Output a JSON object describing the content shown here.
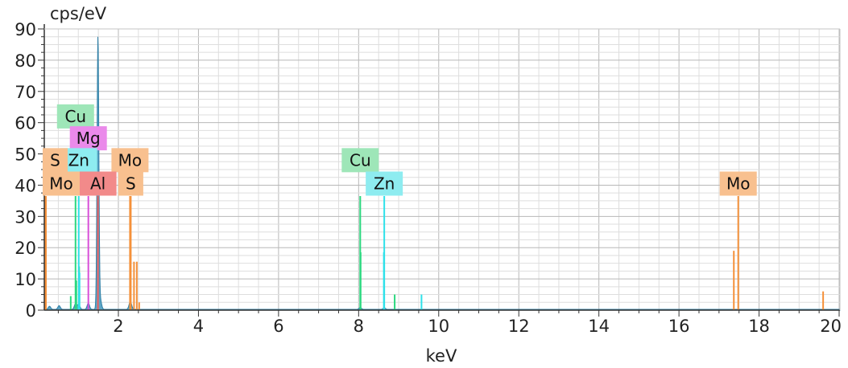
{
  "chart_data": {
    "type": "line",
    "ylabel": "cps/eV",
    "xlabel": "keV",
    "xlim": [
      0.15,
      20.02
    ],
    "ylim": [
      0,
      90
    ],
    "x_ticks": [
      "2",
      "4",
      "6",
      "8",
      "10",
      "12",
      "14",
      "16",
      "18",
      "20"
    ],
    "y_ticks": [
      "0",
      "10",
      "20",
      "30",
      "40",
      "50",
      "60",
      "70",
      "80",
      "90"
    ],
    "grid": true,
    "spectrum": {
      "name": "",
      "color": "#4a9bbf",
      "peaks": [
        {
          "x": 0.28,
          "y": 1.0,
          "w": 0.03
        },
        {
          "x": 0.52,
          "y": 1.2,
          "w": 0.03
        },
        {
          "x": 0.93,
          "y": 1.8,
          "w": 0.03
        },
        {
          "x": 1.01,
          "y": 1.6,
          "w": 0.03
        },
        {
          "x": 1.25,
          "y": 2.0,
          "w": 0.03
        },
        {
          "x": 1.49,
          "y": 87.5,
          "w": 0.022
        },
        {
          "x": 1.55,
          "y": 3.0,
          "w": 0.03
        },
        {
          "x": 2.29,
          "y": 1.5,
          "w": 0.03
        },
        {
          "x": 2.31,
          "y": 1.2,
          "w": 0.03
        },
        {
          "x": 8.04,
          "y": 0.6,
          "w": 0.03
        },
        {
          "x": 8.64,
          "y": 0.5,
          "w": 0.03
        }
      ]
    },
    "element_lines": [
      {
        "element": "Cu",
        "color": "#2bd87f",
        "lines": [
          [
            0.93,
            36.5
          ],
          [
            0.95,
            9.5
          ],
          [
            0.81,
            4.5
          ],
          [
            1.02,
            14.0
          ],
          [
            8.04,
            36.5
          ],
          [
            8.05,
            18.5
          ],
          [
            8.9,
            5.0
          ]
        ]
      },
      {
        "element": "Zn",
        "color": "#2ee1e9",
        "lines": [
          [
            1.01,
            36.5
          ],
          [
            1.03,
            12.0
          ],
          [
            8.64,
            36.5
          ],
          [
            8.63,
            18.5
          ],
          [
            9.57,
            5.0
          ]
        ]
      },
      {
        "element": "Mg",
        "color": "#d94fd9",
        "lines": [
          [
            1.25,
            36.5
          ]
        ]
      },
      {
        "element": "Al",
        "color": "#ef5f5f",
        "lines": [
          [
            1.49,
            36.5
          ]
        ]
      },
      {
        "element": "S",
        "color": "#f5913a",
        "lines": [
          [
            2.31,
            36.5
          ],
          [
            2.46,
            15.5
          ],
          [
            0.17,
            36.5
          ]
        ]
      },
      {
        "element": "Mo",
        "color": "#f5913a",
        "lines": [
          [
            2.29,
            36.5
          ],
          [
            2.39,
            15.5
          ],
          [
            2.52,
            2.5
          ],
          [
            17.48,
            36.5
          ],
          [
            17.37,
            19.0
          ],
          [
            19.6,
            6.0
          ],
          [
            0.19,
            36.5
          ]
        ]
      }
    ],
    "element_tags": [
      {
        "text": "Cu",
        "x": 0.93,
        "y": 62.0,
        "color": "#9ee6b8"
      },
      {
        "text": "Mg",
        "x": 1.25,
        "y": 55.0,
        "color": "#ea8aea"
      },
      {
        "text": "Zn",
        "x": 1.01,
        "y": 48.0,
        "color": "#8eecf0"
      },
      {
        "text": "Mo",
        "x": 2.29,
        "y": 48.0,
        "color": "#f8c08f"
      },
      {
        "text": "Al",
        "x": 1.49,
        "y": 40.5,
        "color": "#f28a8a"
      },
      {
        "text": "S",
        "x": 2.31,
        "y": 40.5,
        "color": "#f8c08f"
      },
      {
        "text": "S",
        "x": 0.18,
        "y": 48.0,
        "color": "#f8c08f"
      },
      {
        "text": "Mo",
        "x": 0.18,
        "y": 40.5,
        "color": "#f8c08f"
      },
      {
        "text": "Cu",
        "x": 8.04,
        "y": 48.0,
        "color": "#9ee6b8"
      },
      {
        "text": "Zn",
        "x": 8.64,
        "y": 40.5,
        "color": "#8eecf0"
      },
      {
        "text": "Mo",
        "x": 17.48,
        "y": 40.5,
        "color": "#f8c08f"
      }
    ]
  }
}
